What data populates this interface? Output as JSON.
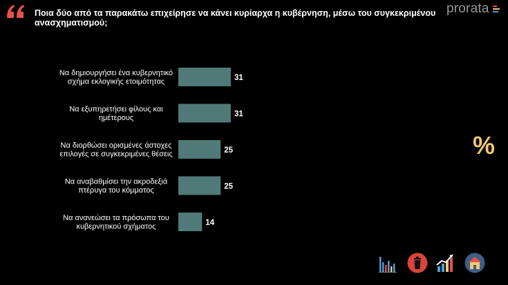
{
  "header": {
    "title": "Ποια δύο από τα παρακάτω επιχείρησε να κάνει κυρίαρχα η κυβέρνηση, μέσω του συγκεκριμένου ανασχηματισμού;",
    "brand": "prorata"
  },
  "colors": {
    "bar": "#4f7a77",
    "accent": "#f0c774",
    "quote": "#e8504a",
    "background": "#000000"
  },
  "side_symbol": "%",
  "chart_data": {
    "type": "bar",
    "orientation": "horizontal",
    "categories": [
      [
        "Να δημιουργήσει ένα κυβερνητικό",
        "σχήμα εκλογικής ετοιμότητας"
      ],
      [
        "Να εξυπηρετήσει φίλους και",
        "ημέτερους"
      ],
      [
        "Να διορθώσει ορισμένες άστοχες",
        "επιλογές σε συγκεκριμένες θέσεις"
      ],
      [
        "Να αναβαθμίσει την ακροδεξιά",
        "πτέρυγα του κόμματος"
      ],
      [
        "Να ανανεώσει τα πρόσωπα του",
        "κυβερνητικού σχήματος"
      ]
    ],
    "values": [
      31,
      31,
      25,
      25,
      14
    ],
    "xlim": [
      0,
      100
    ],
    "grid": false,
    "legend": "none"
  },
  "footer_icons": [
    "bar-chart-icon",
    "trash-bin-icon",
    "trend-chart-icon",
    "house-icon"
  ]
}
